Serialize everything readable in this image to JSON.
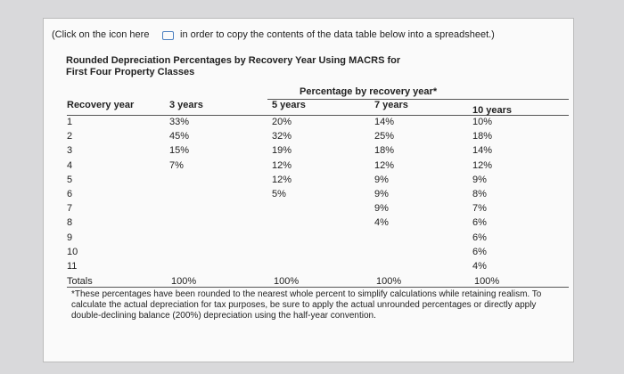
{
  "intro": {
    "before_icon": "(Click on the icon here",
    "after_icon": "in order to copy the contents of the data table below into a spreadsheet.)"
  },
  "title": [
    "Rounded Depreciation Percentages by Recovery Year Using MACRS for",
    "First Four Property Classes"
  ],
  "table": {
    "group_header": "Percentage by recovery year*",
    "columns": [
      "Recovery year",
      "3 years",
      "5 years",
      "7 years",
      "10 years"
    ],
    "rows": [
      [
        "1",
        "33%",
        "20%",
        "14%",
        "10%"
      ],
      [
        "2",
        "45%",
        "32%",
        "25%",
        "18%"
      ],
      [
        "3",
        "15%",
        "19%",
        "18%",
        "14%"
      ],
      [
        "4",
        "7%",
        "12%",
        "12%",
        "12%"
      ],
      [
        "5",
        null,
        "12%",
        "9%",
        "9%"
      ],
      [
        "6",
        null,
        "5%",
        "9%",
        "8%"
      ],
      [
        "7",
        null,
        null,
        "9%",
        "7%"
      ],
      [
        "8",
        null,
        null,
        "4%",
        "6%"
      ],
      [
        "9",
        null,
        null,
        null,
        "6%"
      ],
      [
        "10",
        null,
        null,
        null,
        "6%"
      ],
      [
        "11",
        null,
        null,
        null,
        "4%"
      ]
    ],
    "totals": [
      "Totals",
      "100%",
      "100%",
      "100%",
      "100%"
    ]
  },
  "footnote": "*These percentages have been rounded to the nearest whole percent to simplify calculations while retaining realism. To calculate the actual depreciation for tax purposes, be sure to apply the actual unrounded percentages or directly apply double-declining balance (200%) depreciation using the half-year convention."
}
